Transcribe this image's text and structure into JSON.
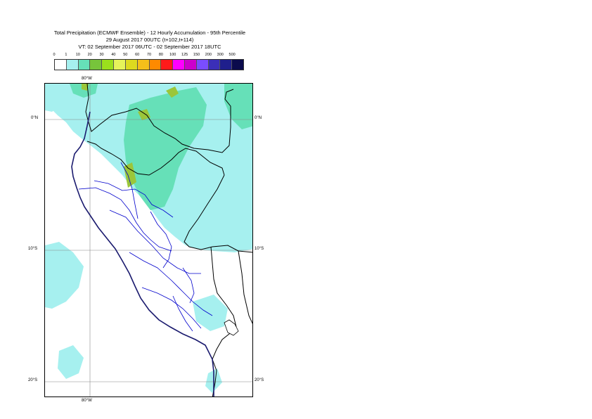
{
  "title": {
    "line1": "Total Precipitation (ECMWF Ensemble) - 12 Hourly Accumulation - 95th Percentile",
    "line2": "29 August 2017 00UTC (t+102,t+114)",
    "line3": "VT: 02 September 2017 06UTC - 02 September 2017 18UTC"
  },
  "legend": {
    "ticks": [
      "0",
      "1",
      "10",
      "20",
      "30",
      "40",
      "50",
      "60",
      "70",
      "80",
      "100",
      "125",
      "150",
      "200",
      "300",
      "500"
    ],
    "colors": [
      "#ffffff",
      "#a6f0ef",
      "#66e0b8",
      "#77c43b",
      "#9be01c",
      "#e6f35a",
      "#ddd91f",
      "#f5bf1a",
      "#ff8a00",
      "#ff1a1a",
      "#ff00ff",
      "#cc00cc",
      "#7a4dff",
      "#3b2fb8",
      "#1f1f8c",
      "#0b0b4d"
    ]
  },
  "axes": {
    "lon_top": "80°W",
    "lon_bottom": "80°W",
    "lat_left_0": "0°N",
    "lat_right_0": "0°N",
    "lat_left_10": "10°S",
    "lat_right_10": "10°S",
    "lat_left_20": "20°S",
    "lat_right_20": "20°S"
  },
  "colors": {
    "light_precip": "#a6f0ef",
    "moderate_precip": "#66e0b8",
    "heavy_precip": "#9bc63a",
    "coast": "#1a1a6e",
    "borders": "#000000",
    "regions": "#0000cc",
    "grid": "#888888"
  }
}
